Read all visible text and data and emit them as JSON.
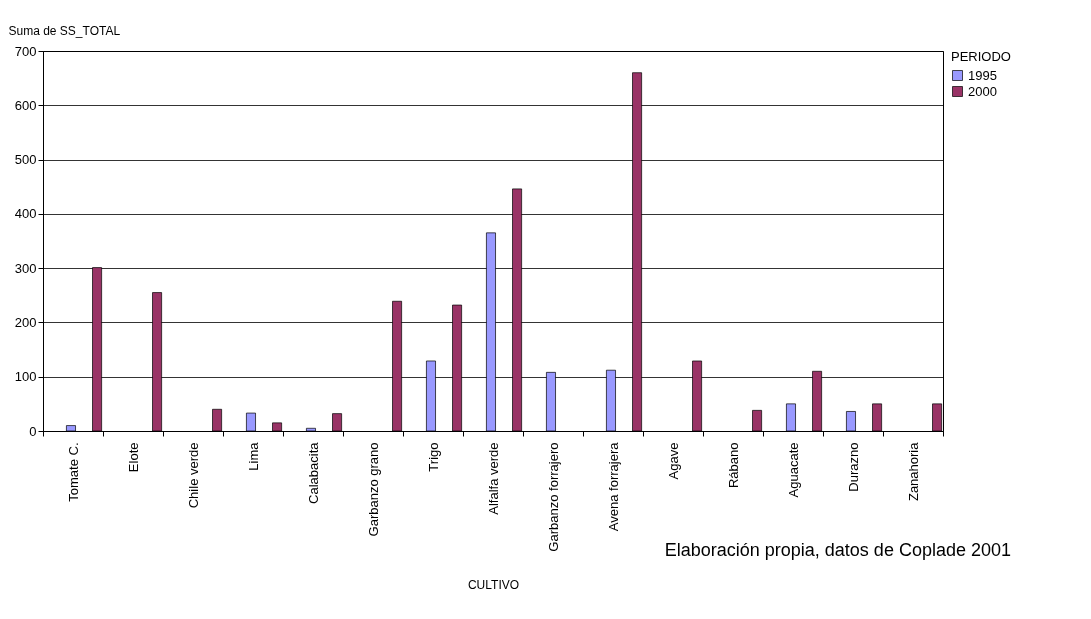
{
  "chart_data": {
    "type": "bar",
    "xlabel": "CULTIVO",
    "ylabel": "Suma de SS_TOTAL",
    "legend_title": "PERIODO",
    "annotations": [
      "Elaboración propia, datos de Coplade 2001"
    ],
    "categories": [
      "Tomate C.",
      "Elote",
      "Chile verde",
      "Lima",
      "Calabacita",
      "Garbanzo grano",
      "Trigo",
      "Alfalfa verde",
      "Garbanzo forrajero",
      "Avena forrajera",
      "Agave",
      "Rábano",
      "Aguacate",
      "Durazno",
      "Zanahoria"
    ],
    "series": [
      {
        "name": "1995",
        "color": "#9999ff",
        "values": [
          10,
          null,
          null,
          33,
          5,
          null,
          129,
          365,
          108,
          112,
          null,
          null,
          50,
          36,
          null
        ]
      },
      {
        "name": "2000",
        "color": "#993366",
        "values": [
          301,
          255,
          40,
          15,
          32,
          239,
          232,
          446,
          null,
          660,
          129,
          38,
          110,
          50,
          50
        ]
      }
    ],
    "ylim": [
      0,
      700
    ],
    "yticks": [
      0,
      100,
      200,
      300,
      400,
      500,
      600,
      700
    ],
    "grid": "y",
    "legend": "right"
  }
}
